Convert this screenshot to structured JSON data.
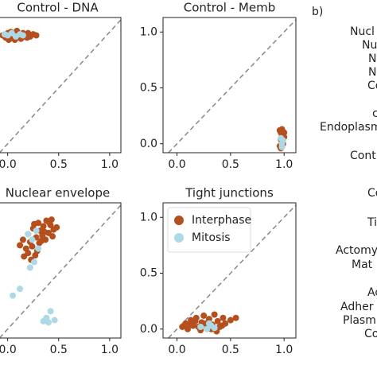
{
  "chart_data": [
    {
      "type": "scatter",
      "title": "Control - DNA",
      "xlim": [
        -0.13,
        1.11
      ],
      "ylim": [
        -0.08,
        1.13
      ],
      "xticks": [
        {
          "value": 0,
          "label": "0.0"
        },
        0.5,
        {
          "value": 1,
          "label": "1.0"
        }
      ],
      "diagonal": true,
      "series": [
        {
          "color": "#b5501e",
          "x": [
            -0.05,
            -0.02,
            0,
            0.02,
            0.04,
            0.06,
            0.08,
            0.1,
            0.12,
            0.14,
            0.16,
            0.18,
            0.2,
            0.22,
            0.25,
            0.28,
            0.03,
            0.07,
            0.11,
            0.15,
            0.19,
            0.01,
            0.09,
            0.13,
            0.05
          ],
          "y": [
            0.97,
            0.95,
            0.99,
            0.96,
            0.98,
            0.94,
            0.97,
            0.99,
            0.95,
            0.98,
            0.96,
            0.97,
            0.99,
            0.96,
            0.98,
            0.97,
            1.0,
            0.93,
            0.96,
            0.99,
            0.95,
            0.93,
            1.01,
            0.94,
            0.98
          ]
        },
        {
          "color": "#add8e6",
          "x": [
            0.0,
            0.04,
            0.08,
            0.12,
            -0.03,
            0.15
          ],
          "y": [
            0.97,
            0.99,
            0.96,
            0.98,
            0.98,
            0.97
          ]
        }
      ]
    },
    {
      "type": "scatter",
      "title": "Control - Memb",
      "xlim": [
        -0.13,
        1.11
      ],
      "ylim": [
        -0.08,
        1.13
      ],
      "xticks": [
        {
          "value": 0,
          "label": "0.0"
        },
        0.5,
        {
          "value": 1,
          "label": "1.0"
        }
      ],
      "yticks": [
        {
          "value": 0,
          "label": "0.0"
        },
        0.5,
        {
          "value": 1,
          "label": "1.0"
        }
      ],
      "diagonal": true,
      "series": [
        {
          "color": "#b5501e",
          "x": [
            0.96,
            0.97,
            0.98,
            0.99,
            1.0,
            0.97,
            0.98,
            0.99,
            0.96,
            1.0,
            0.98,
            0.97
          ],
          "y": [
            0.12,
            0.1,
            0.13,
            0.08,
            0.06,
            0.04,
            0.02,
            0.0,
            -0.02,
            0.1,
            0.07,
            -0.04
          ]
        },
        {
          "color": "#add8e6",
          "x": [
            0.97,
            0.98,
            0.99,
            0.98
          ],
          "y": [
            0.05,
            0.0,
            0.03,
            -0.03
          ]
        }
      ]
    },
    {
      "type": "scatter",
      "title": "Nuclear envelope",
      "xlim": [
        -0.13,
        1.11
      ],
      "ylim": [
        -0.08,
        1.13
      ],
      "xticks": [
        {
          "value": 0,
          "label": "0.0"
        },
        0.5,
        {
          "value": 1,
          "label": "1.0"
        }
      ],
      "diagonal": true,
      "series": [
        {
          "color": "#b5501e",
          "x": [
            0.12,
            0.15,
            0.18,
            0.2,
            0.22,
            0.25,
            0.28,
            0.3,
            0.32,
            0.35,
            0.38,
            0.4,
            0.42,
            0.45,
            0.48,
            0.2,
            0.24,
            0.27,
            0.31,
            0.34,
            0.37,
            0.41,
            0.44,
            0.16,
            0.23,
            0.29,
            0.36,
            0.43,
            0.26,
            0.33
          ],
          "y": [
            0.75,
            0.8,
            0.72,
            0.85,
            0.78,
            0.9,
            0.82,
            0.95,
            0.88,
            0.92,
            0.97,
            0.86,
            0.93,
            0.89,
            0.91,
            0.68,
            0.74,
            0.66,
            0.77,
            0.84,
            0.8,
            0.95,
            0.83,
            0.65,
            0.62,
            0.7,
            0.87,
            0.98,
            0.94,
            0.79
          ]
        },
        {
          "color": "#add8e6",
          "x": [
            0.2,
            0.24,
            0.28,
            0.3,
            0.22,
            0.26,
            0.05,
            0.12,
            0.35,
            0.38,
            0.42,
            0.4,
            0.46
          ],
          "y": [
            0.85,
            0.8,
            0.88,
            0.72,
            0.55,
            0.6,
            0.3,
            0.36,
            0.07,
            0.1,
            0.16,
            0.06,
            0.08
          ]
        }
      ]
    },
    {
      "type": "scatter",
      "title": "Tight junctions",
      "xlim": [
        -0.13,
        1.11
      ],
      "ylim": [
        -0.08,
        1.13
      ],
      "xticks": [
        {
          "value": 0,
          "label": "0.0"
        },
        0.5,
        {
          "value": 1,
          "label": "1.0"
        }
      ],
      "yticks": [
        {
          "value": 0,
          "label": "0.0"
        },
        0.5,
        {
          "value": 1,
          "label": "1.0"
        }
      ],
      "diagonal": true,
      "legend": "upper left",
      "series": [
        {
          "name": "Interphase",
          "color": "#b5501e",
          "x": [
            0.05,
            0.08,
            0.1,
            0.13,
            0.15,
            0.18,
            0.2,
            0.23,
            0.25,
            0.28,
            0.3,
            0.33,
            0.35,
            0.38,
            0.4,
            0.43,
            0.45,
            0.5,
            0.55,
            0.12,
            0.22,
            0.32,
            0.42,
            0.27,
            0.17,
            0.37
          ],
          "y": [
            0.02,
            0.05,
            0.0,
            0.08,
            0.03,
            0.1,
            0.02,
            0.06,
            0.12,
            0.01,
            0.09,
            0.04,
            0.13,
            0.07,
            0.02,
            0.1,
            0.05,
            0.08,
            0.1,
            0.04,
            -0.01,
            0.0,
            0.03,
            0.05,
            0.07,
            -0.02
          ]
        },
        {
          "name": "Mitosis",
          "color": "#add8e6",
          "x": [
            0.22,
            0.28,
            0.32,
            0.35,
            0.3
          ],
          "y": [
            0.02,
            0.0,
            0.03,
            0.01,
            0.05
          ]
        }
      ]
    }
  ],
  "panel_b": {
    "label": "b)",
    "items": [
      "Nucl",
      "Nu",
      "N",
      "N",
      "Co",
      "c",
      "Endoplasm",
      "Cont",
      "Co",
      "Ti",
      "Actomy",
      "Mat",
      "Ac",
      "Adher",
      "Plasm",
      "Co"
    ]
  }
}
